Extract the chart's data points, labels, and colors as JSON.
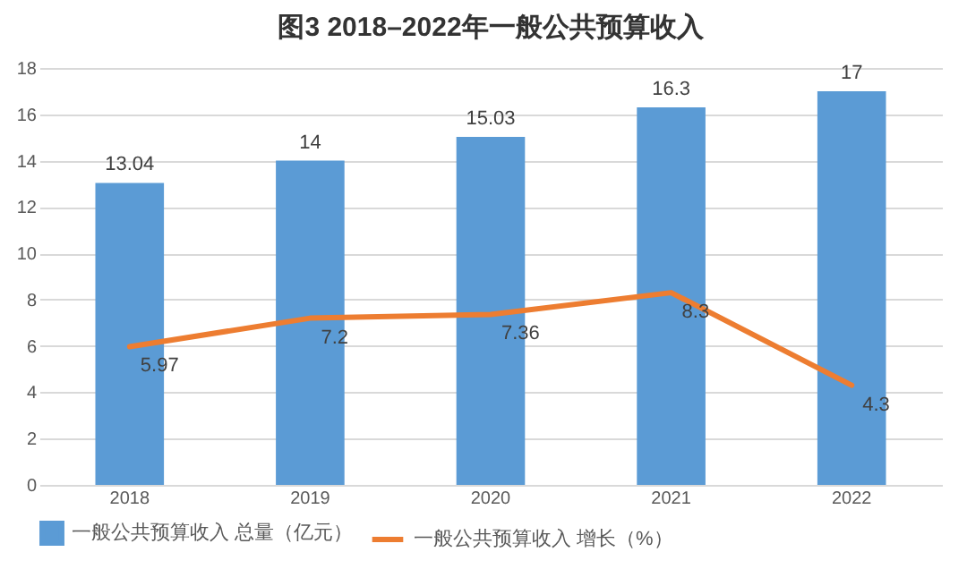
{
  "chart_data": {
    "type": "bar",
    "title": "图3  2018–2022年一般公共预算收入",
    "categories": [
      "2018",
      "2019",
      "2020",
      "2021",
      "2022"
    ],
    "series": [
      {
        "name": "一般公共预算收入 总量（亿元）",
        "color": "#5b9bd5",
        "values": [
          13.04,
          14,
          15.03,
          16.3,
          17
        ]
      },
      {
        "name": "一般公共预算收入 增长（%）",
        "type": "line",
        "color": "#ed7d31",
        "values": [
          5.97,
          7.2,
          7.36,
          8.3,
          4.3
        ]
      }
    ],
    "ylim": [
      0,
      18
    ],
    "yticks": [
      0,
      2,
      4,
      6,
      8,
      10,
      12,
      14,
      16,
      18
    ],
    "grid": "y",
    "legend": "bottom",
    "data_labels": true,
    "marker": "none"
  }
}
